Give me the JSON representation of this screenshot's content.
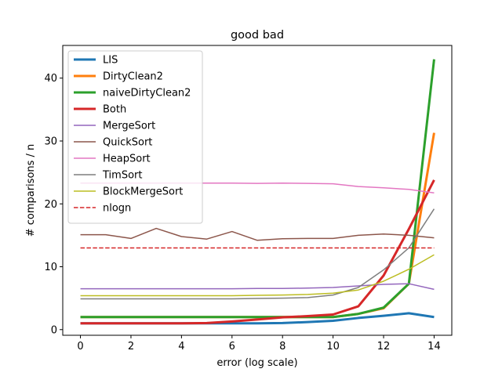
{
  "chart_data": {
    "type": "line",
    "title": "good bad",
    "xlabel": "error (log scale)",
    "ylabel": "# comparisons / n",
    "xlim": [
      -0.7,
      14.7
    ],
    "ylim": [
      -0.9,
      45.2
    ],
    "x_ticks": [
      0,
      2,
      4,
      6,
      8,
      10,
      12,
      14
    ],
    "y_ticks": [
      0,
      10,
      20,
      30,
      40
    ],
    "x_tick_labels": [
      "0",
      "2",
      "4",
      "6",
      "8",
      "10",
      "12",
      "14"
    ],
    "y_tick_labels": [
      "0",
      "10",
      "20",
      "30",
      "40"
    ],
    "grid": false,
    "legend_position": "top-left",
    "x": [
      0,
      1,
      2,
      3,
      4,
      5,
      6,
      7,
      8,
      9,
      10,
      11,
      12,
      13,
      14
    ],
    "series": [
      {
        "name": "LIS",
        "color": "#1f77b4",
        "width": 3,
        "dash": "solid",
        "values": [
          1.0,
          1.0,
          1.0,
          1.0,
          1.0,
          1.0,
          1.0,
          1.0,
          1.05,
          1.2,
          1.4,
          1.85,
          2.2,
          2.6,
          2.0
        ]
      },
      {
        "name": "DirtyClean2",
        "color": "#ff7f0e",
        "width": 3,
        "dash": "solid",
        "values": [
          2.0,
          2.0,
          2.0,
          2.0,
          2.0,
          2.0,
          2.0,
          2.0,
          2.0,
          2.0,
          2.0,
          2.5,
          3.4,
          7.3,
          31.3
        ]
      },
      {
        "name": "naiveDirtyClean2",
        "color": "#2ca02c",
        "width": 3,
        "dash": "solid",
        "values": [
          2.0,
          2.0,
          2.0,
          2.0,
          2.0,
          2.0,
          2.0,
          2.0,
          2.0,
          2.0,
          2.0,
          2.5,
          3.5,
          7.3,
          43.0
        ]
      },
      {
        "name": "Both",
        "color": "#d62728",
        "width": 3,
        "dash": "solid",
        "values": [
          1.0,
          1.0,
          1.0,
          1.0,
          1.0,
          1.05,
          1.3,
          1.6,
          1.95,
          2.15,
          2.4,
          3.7,
          8.6,
          16.0,
          23.8
        ]
      },
      {
        "name": "MergeSort",
        "color": "#9467bd",
        "width": 1.5,
        "dash": "solid",
        "values": [
          6.5,
          6.5,
          6.5,
          6.5,
          6.5,
          6.5,
          6.5,
          6.55,
          6.55,
          6.6,
          6.7,
          6.95,
          7.2,
          7.3,
          6.4
        ]
      },
      {
        "name": "QuickSort",
        "color": "#8c564b",
        "width": 1.5,
        "dash": "solid",
        "values": [
          15.1,
          15.1,
          14.5,
          16.1,
          14.8,
          14.4,
          15.6,
          14.2,
          14.45,
          14.5,
          14.5,
          15.0,
          15.2,
          15.0,
          14.6
        ]
      },
      {
        "name": "HeapSort",
        "color": "#e377c2",
        "width": 1.5,
        "dash": "solid",
        "values": [
          23.3,
          23.3,
          23.3,
          23.3,
          23.3,
          23.3,
          23.3,
          23.25,
          23.3,
          23.25,
          23.2,
          22.75,
          22.55,
          22.3,
          21.75
        ]
      },
      {
        "name": "TimSort",
        "color": "#7f7f7f",
        "width": 1.5,
        "dash": "solid",
        "values": [
          4.9,
          4.9,
          4.9,
          4.9,
          4.9,
          4.9,
          4.9,
          4.95,
          5.0,
          5.1,
          5.5,
          6.7,
          9.5,
          13.0,
          19.2
        ]
      },
      {
        "name": "BlockMergeSort",
        "color": "#bcbd22",
        "width": 1.5,
        "dash": "solid",
        "values": [
          5.4,
          5.4,
          5.4,
          5.4,
          5.4,
          5.4,
          5.4,
          5.45,
          5.5,
          5.6,
          5.8,
          6.3,
          7.7,
          9.6,
          11.9
        ]
      },
      {
        "name": "nlogn",
        "color": "#d62728",
        "width": 1.5,
        "dash": "dashed",
        "values": [
          13.0,
          13.0,
          13.0,
          13.0,
          13.0,
          13.0,
          13.0,
          13.0,
          13.0,
          13.0,
          13.0,
          13.0,
          13.0,
          13.0,
          13.0
        ]
      }
    ]
  }
}
